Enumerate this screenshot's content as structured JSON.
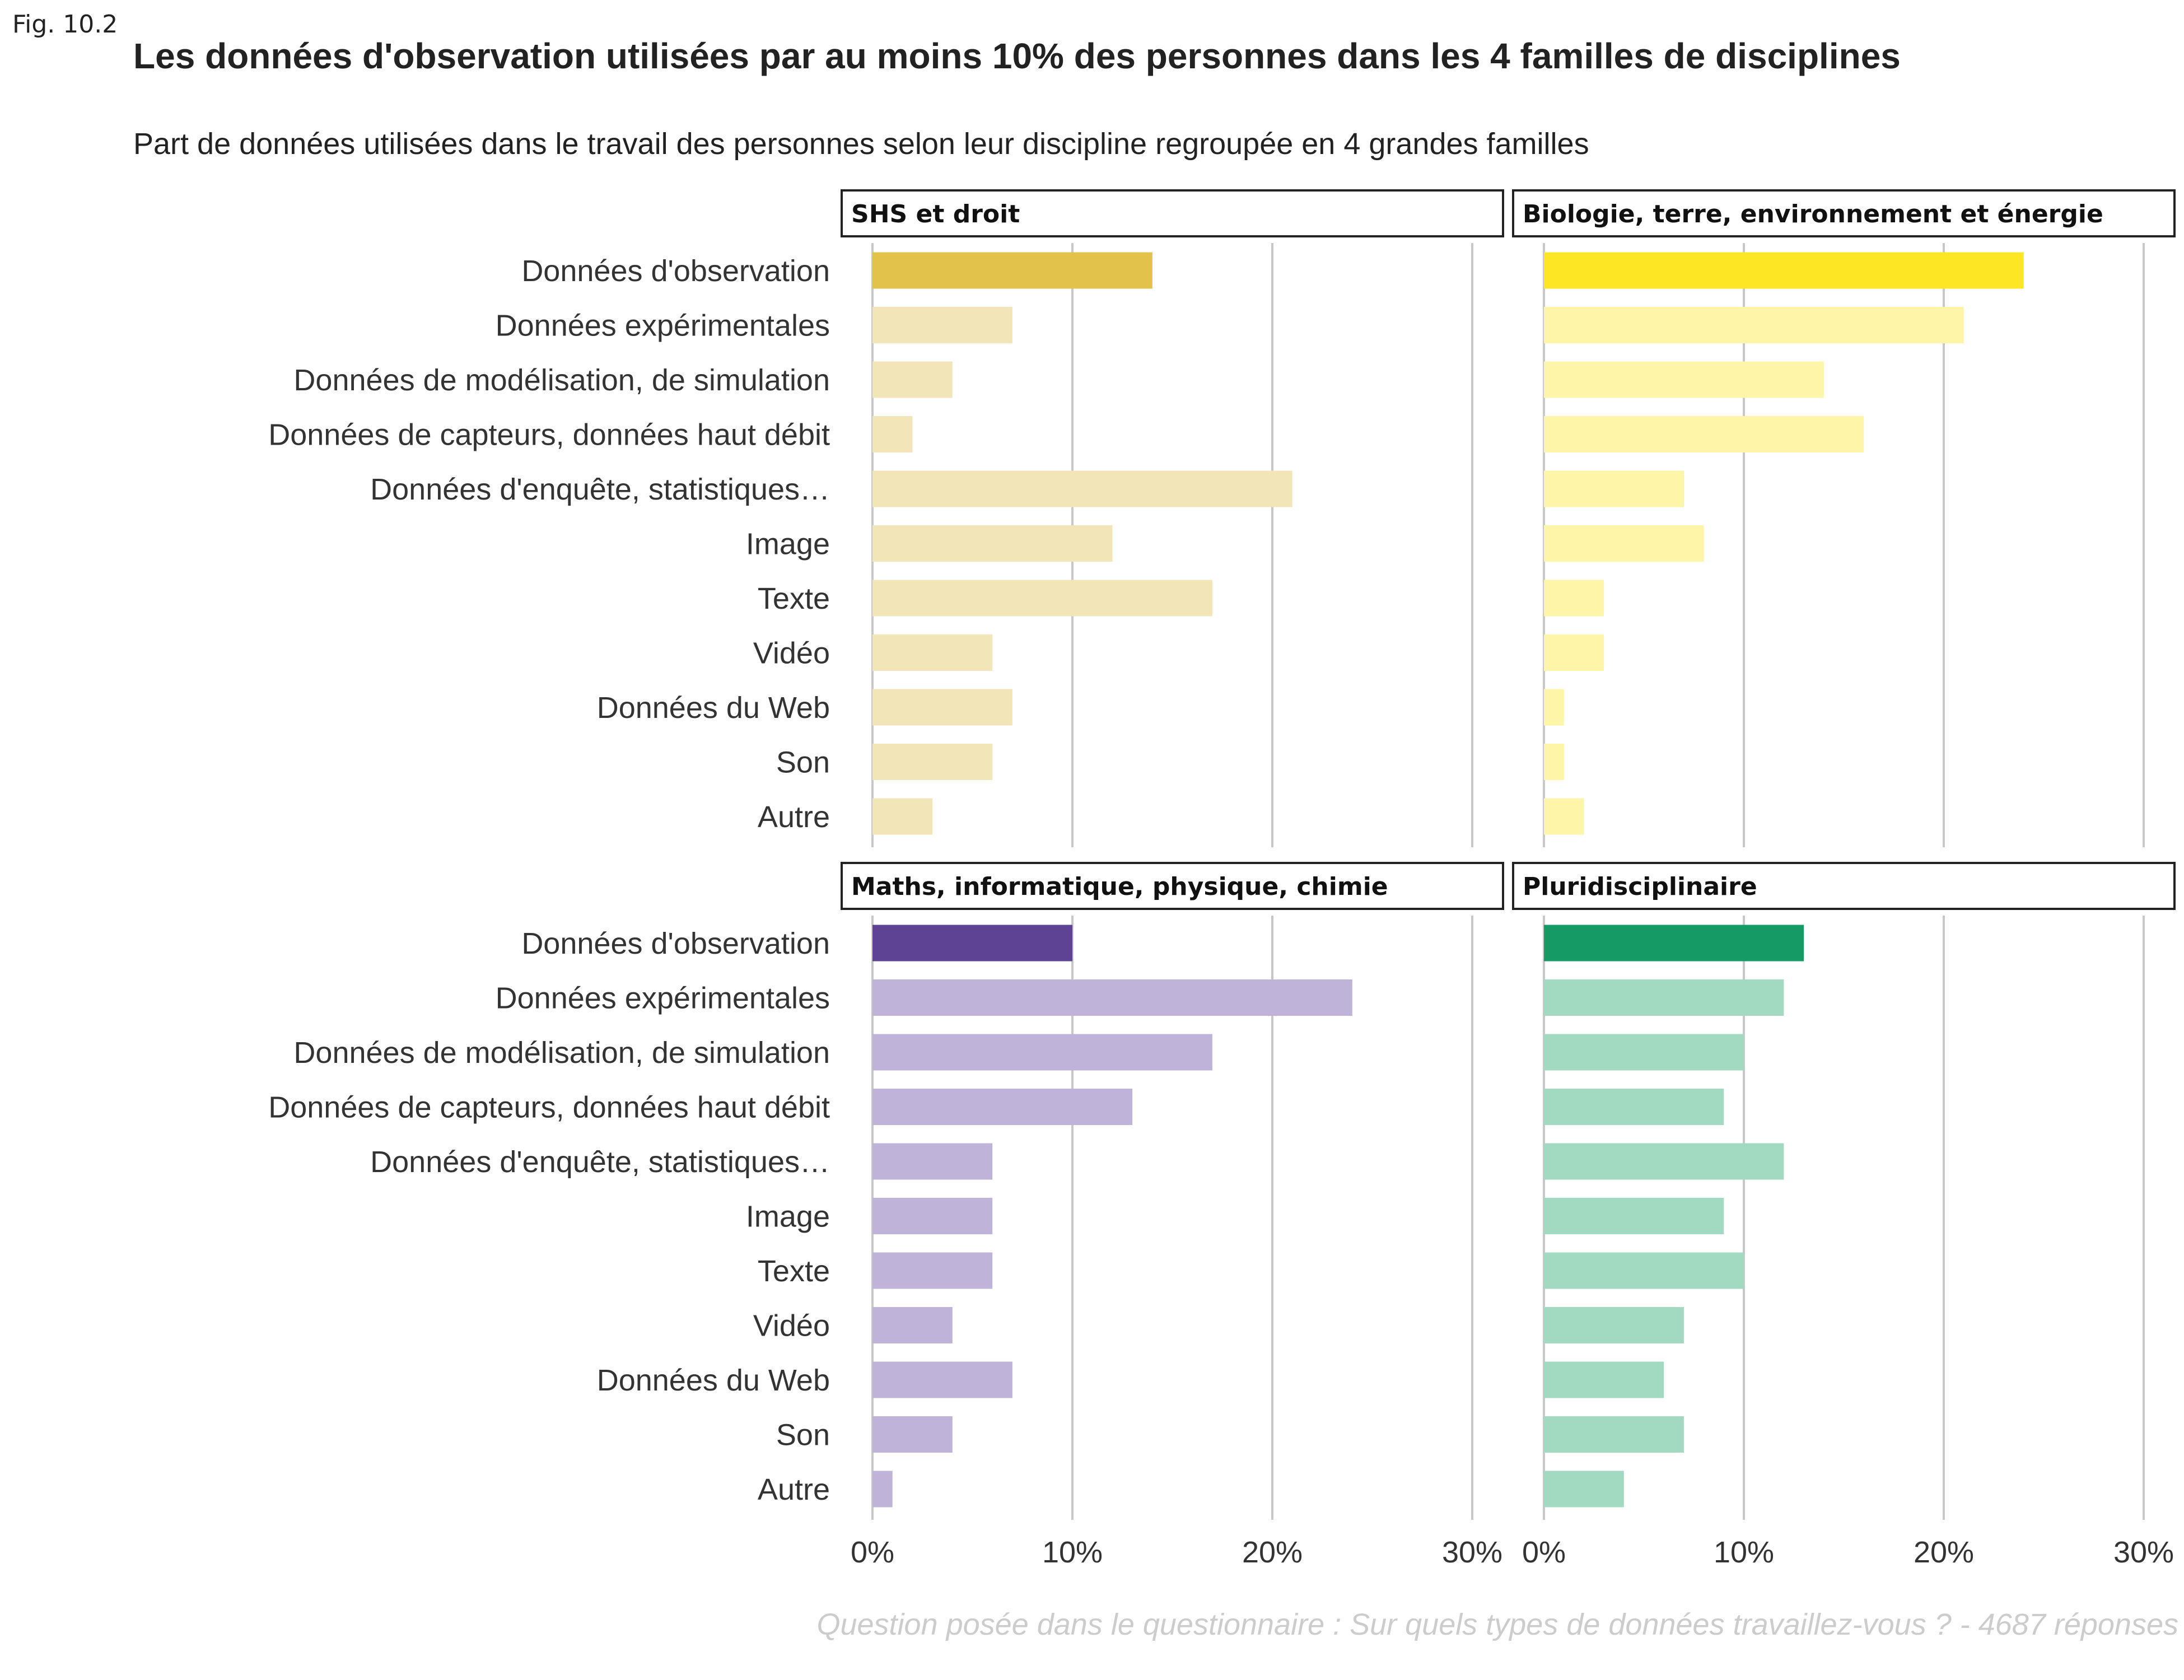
{
  "figure_label": "Fig. 10.2",
  "title": "Les données d'observation utilisées par au moins 10% des personnes dans les 4 familles de disciplines",
  "subtitle": "Part de données utilisées dans le travail des personnes selon leur discipline regroupée en 4 grandes familles",
  "caption": "Question posée dans le questionnaire : Sur quels types de données travaillez-vous ? - 4687 réponses",
  "chart_data": {
    "type": "bar",
    "orientation": "horizontal",
    "categories": [
      "Données d'observation",
      "Données expérimentales",
      "Données de modélisation, de simulation",
      "Données de capteurs, données haut débit",
      "Données d'enquête, statistiques…",
      "Image",
      "Texte",
      "Vidéo",
      "Données du Web",
      "Son",
      "Autre"
    ],
    "xlim": [
      0,
      30
    ],
    "x_ticks": [
      "0%",
      "10%",
      "20%",
      "30%"
    ],
    "grid": "vertical",
    "highlight_category": "Données d'observation",
    "panels": [
      {
        "name": "SHS et droit",
        "color": "#E2C24B",
        "light_color": "#F2E5B7",
        "values": [
          14,
          7,
          4,
          2,
          21,
          12,
          17,
          6,
          7,
          6,
          3
        ]
      },
      {
        "name": "Biologie, terre, environnement et énergie",
        "color": "#FDE725",
        "light_color": "#FEF5A8",
        "values": [
          24,
          21,
          14,
          16,
          7,
          8,
          3,
          3,
          1,
          1,
          2
        ]
      },
      {
        "name": "Maths, informatique, physique, chimie",
        "color": "#5E4394",
        "light_color": "#BFB3D9",
        "values": [
          10,
          24,
          17,
          13,
          6,
          6,
          6,
          4,
          7,
          4,
          1
        ]
      },
      {
        "name": "Pluridisciplinaire",
        "color": "#159A63",
        "light_color": "#A2D9C1",
        "values": [
          13,
          12,
          10,
          9,
          12,
          9,
          10,
          7,
          6,
          7,
          4
        ]
      }
    ]
  }
}
